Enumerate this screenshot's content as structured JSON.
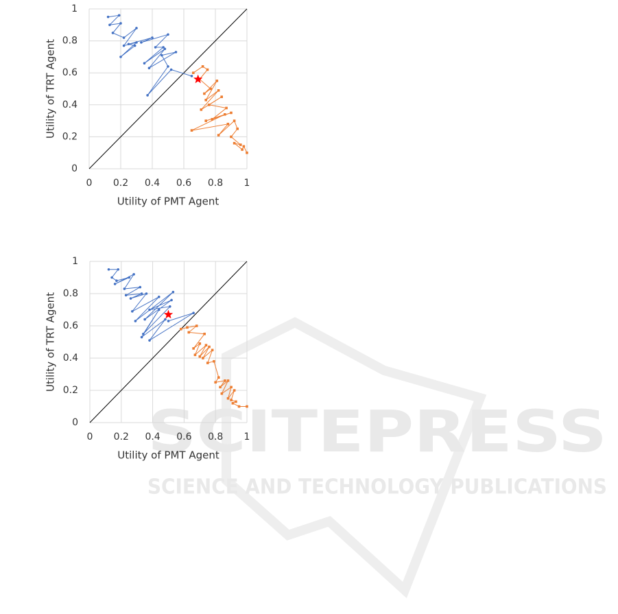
{
  "chart_data": [
    {
      "type": "line",
      "xlabel": "Utility of PMT Agent",
      "ylabel": "Utility of TRT Agent",
      "xlim": [
        0,
        1
      ],
      "ylim": [
        0,
        1
      ],
      "xticks": [
        0,
        0.2,
        0.4,
        0.6,
        0.8,
        1
      ],
      "yticks": [
        0,
        0.2,
        0.4,
        0.6,
        0.8,
        1
      ],
      "grid": true,
      "series": [
        {
          "color": "#000000",
          "marker": "none",
          "x": [
            0,
            1
          ],
          "values": [
            0,
            1
          ]
        },
        {
          "color": "#4472c4",
          "marker": "circle",
          "x": [
            0.12,
            0.19,
            0.13,
            0.2,
            0.15,
            0.22,
            0.3,
            0.22,
            0.3,
            0.2,
            0.29,
            0.25,
            0.4,
            0.33,
            0.5,
            0.42,
            0.47,
            0.35,
            0.48,
            0.38,
            0.55,
            0.46,
            0.5,
            0.37,
            0.52,
            0.65
          ],
          "values": [
            0.95,
            0.96,
            0.9,
            0.91,
            0.85,
            0.82,
            0.88,
            0.77,
            0.79,
            0.7,
            0.77,
            0.78,
            0.82,
            0.79,
            0.84,
            0.76,
            0.76,
            0.66,
            0.75,
            0.63,
            0.73,
            0.71,
            0.64,
            0.46,
            0.62,
            0.58
          ]
        },
        {
          "color": "#ed7d31",
          "marker": "square",
          "x": [
            0.66,
            0.72,
            0.75,
            0.7,
            0.77,
            0.73,
            0.81,
            0.74,
            0.82,
            0.71,
            0.84,
            0.76,
            0.87,
            0.78,
            0.9,
            0.74,
            0.86,
            0.65,
            0.88,
            0.82,
            0.92,
            0.94,
            0.9,
            0.96,
            0.92,
            0.97,
            0.98,
            1.0
          ],
          "values": [
            0.6,
            0.64,
            0.62,
            0.56,
            0.5,
            0.47,
            0.55,
            0.43,
            0.49,
            0.37,
            0.45,
            0.4,
            0.38,
            0.31,
            0.35,
            0.3,
            0.34,
            0.24,
            0.28,
            0.21,
            0.3,
            0.25,
            0.2,
            0.15,
            0.16,
            0.12,
            0.14,
            0.1
          ]
        },
        {
          "color": "#ff0000",
          "marker": "star",
          "x": [
            0.69
          ],
          "values": [
            0.56
          ]
        }
      ]
    },
    {
      "type": "line",
      "xlabel": "Utility of PMT Agent",
      "ylabel": "Utility of TRT Agent",
      "xlim": [
        0,
        1
      ],
      "ylim": [
        0,
        1
      ],
      "xticks": [
        0,
        0.2,
        0.4,
        0.6,
        0.8,
        1
      ],
      "yticks": [
        0,
        0.2,
        0.4,
        0.6,
        0.8,
        1
      ],
      "grid": true,
      "series": [
        {
          "color": "#000000",
          "marker": "none",
          "x": [
            0,
            1
          ],
          "values": [
            0,
            1
          ]
        },
        {
          "color": "#4472c4",
          "marker": "circle",
          "x": [
            0.12,
            0.18,
            0.14,
            0.17,
            0.25,
            0.16,
            0.28,
            0.22,
            0.32,
            0.23,
            0.33,
            0.26,
            0.36,
            0.27,
            0.44,
            0.29,
            0.53,
            0.35,
            0.52,
            0.38,
            0.51,
            0.34,
            0.44,
            0.33,
            0.48,
            0.38,
            0.66,
            0.5
          ],
          "values": [
            0.95,
            0.95,
            0.9,
            0.88,
            0.9,
            0.86,
            0.92,
            0.83,
            0.84,
            0.79,
            0.8,
            0.77,
            0.8,
            0.69,
            0.78,
            0.63,
            0.81,
            0.64,
            0.76,
            0.7,
            0.72,
            0.55,
            0.7,
            0.53,
            0.64,
            0.51,
            0.68,
            0.63
          ]
        },
        {
          "color": "#ed7d31",
          "marker": "square",
          "x": [
            0.58,
            0.62,
            0.68,
            0.63,
            0.73,
            0.66,
            0.7,
            0.67,
            0.74,
            0.7,
            0.76,
            0.72,
            0.78,
            0.75,
            0.79,
            0.82,
            0.8,
            0.86,
            0.83,
            0.88,
            0.84,
            0.9,
            0.88,
            0.92,
            0.9,
            0.93,
            0.91,
            0.95,
            1.0
          ],
          "values": [
            0.58,
            0.59,
            0.6,
            0.56,
            0.55,
            0.46,
            0.49,
            0.42,
            0.48,
            0.41,
            0.47,
            0.4,
            0.45,
            0.37,
            0.38,
            0.28,
            0.25,
            0.26,
            0.22,
            0.26,
            0.18,
            0.22,
            0.15,
            0.2,
            0.14,
            0.13,
            0.12,
            0.1,
            0.1
          ]
        },
        {
          "color": "#ff0000",
          "marker": "star",
          "x": [
            0.5
          ],
          "values": [
            0.67
          ]
        }
      ]
    }
  ],
  "watermark": {
    "title": "SCITEPRESS",
    "subtitle": "SCIENCE AND TECHNOLOGY PUBLICATIONS"
  }
}
